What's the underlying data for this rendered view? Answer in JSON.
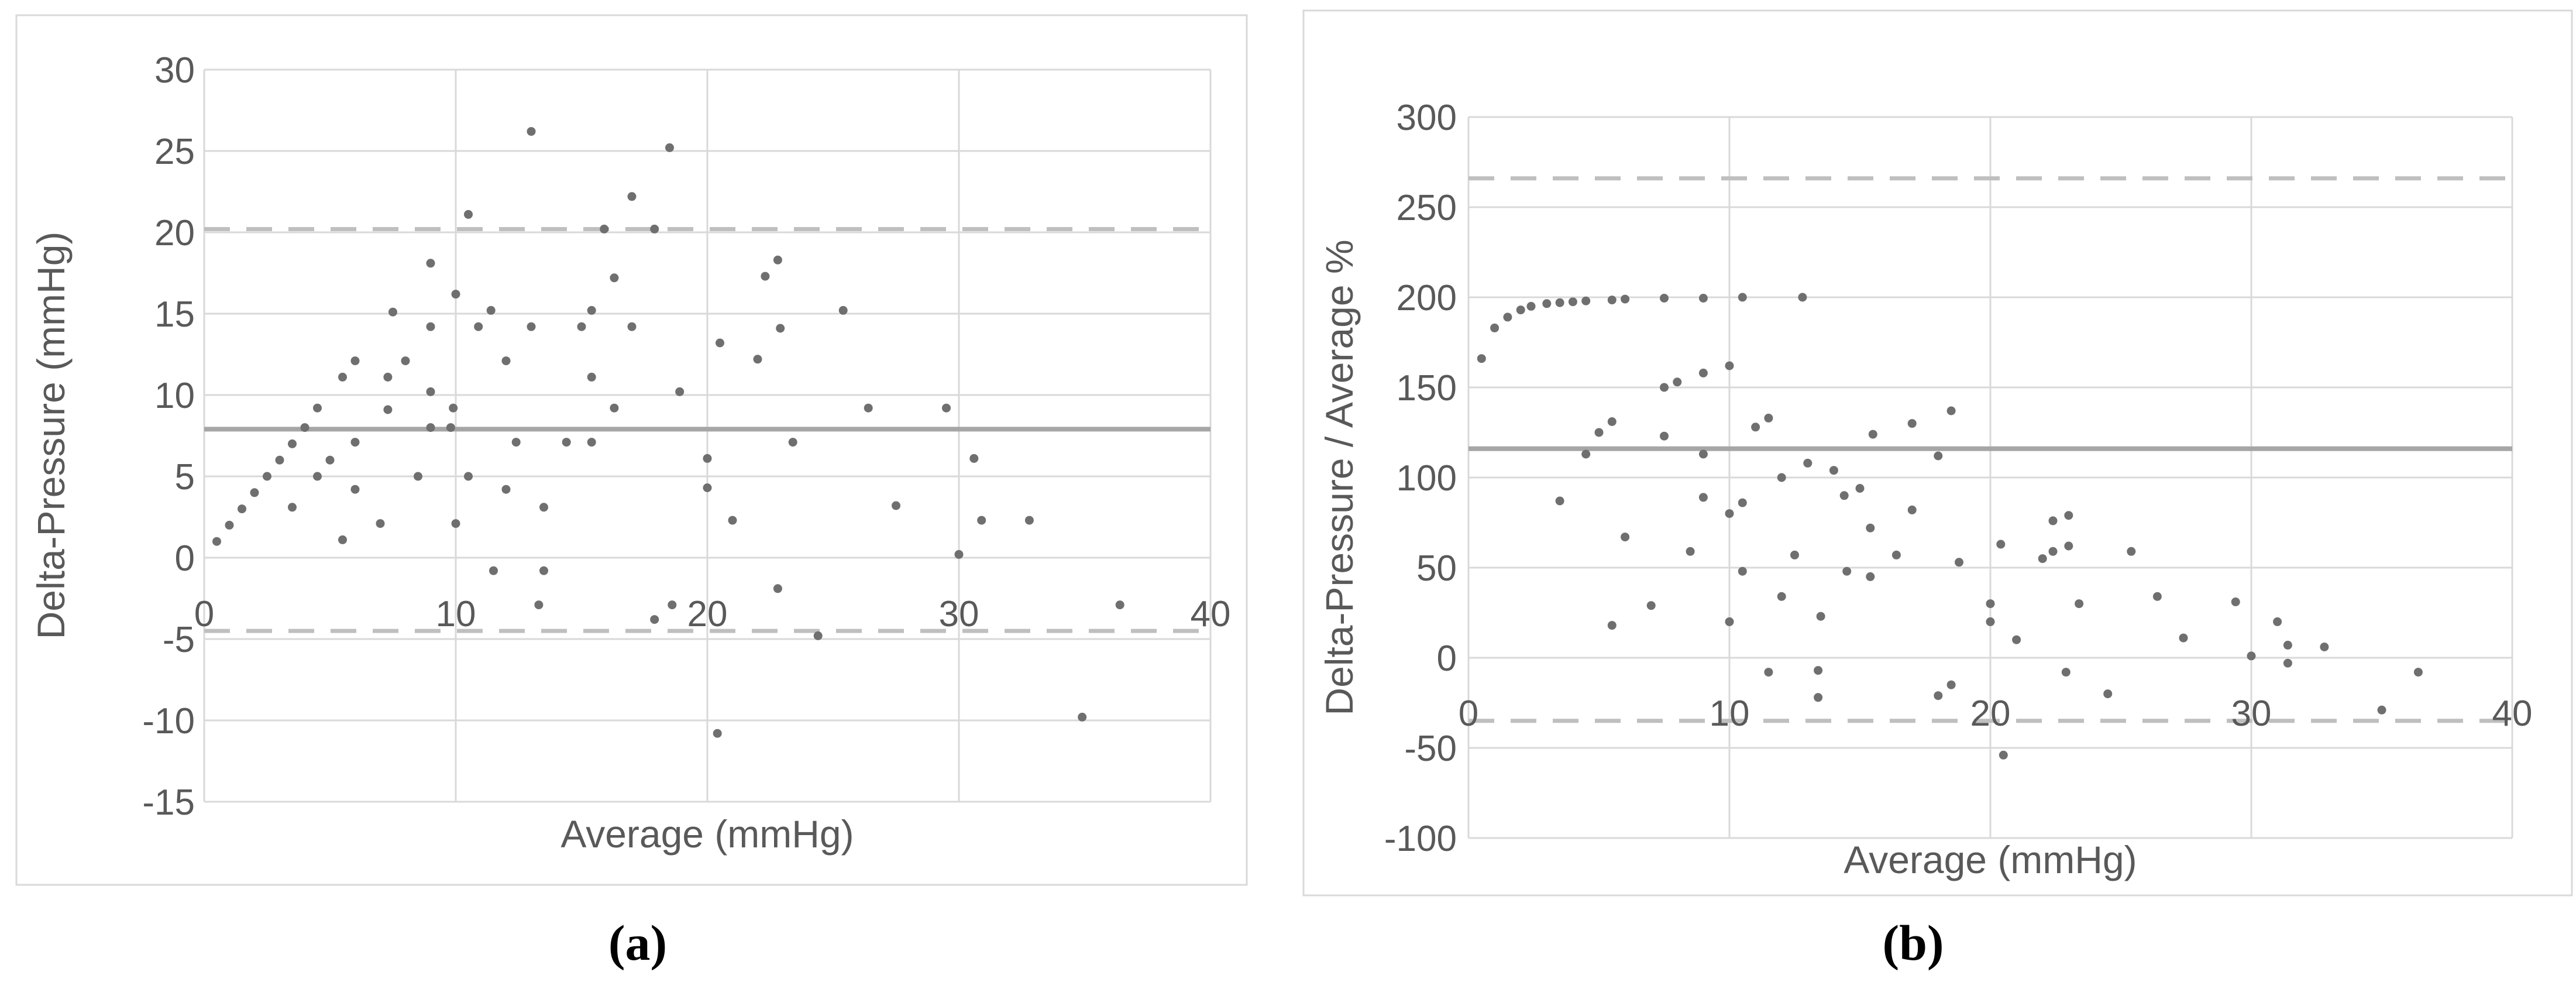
{
  "figure": {
    "captions": {
      "a": "(a)",
      "b": "(b)"
    },
    "colors": {
      "background": "#ffffff",
      "point": "#6f6f6f",
      "gridline": "#d9d9d9",
      "panel_border": "#d9d9d9",
      "mean_line": "#a6a6a6",
      "loa_dashed_line": "#bfbfbf",
      "axis_text": "#595959",
      "caption_text": "#000000"
    }
  },
  "chart_data": [
    {
      "type": "scatter",
      "panel": "a",
      "title": "",
      "xlabel": "Average (mmHg)",
      "ylabel": "Delta-Pressure (mmHg)",
      "xlim": [
        0,
        40
      ],
      "ylim": [
        -15,
        30
      ],
      "x_ticks": [
        0,
        10,
        20,
        30,
        40
      ],
      "y_ticks": [
        30,
        25,
        20,
        15,
        10,
        5,
        0,
        -5,
        -10,
        -15
      ],
      "grid": true,
      "legend": false,
      "mean_line": 7.9,
      "upper_loa": 20.2,
      "lower_loa": -4.5,
      "points": [
        [
          0.5,
          1
        ],
        [
          1,
          2
        ],
        [
          1.5,
          3
        ],
        [
          2,
          4
        ],
        [
          2.5,
          5
        ],
        [
          3,
          6
        ],
        [
          3.5,
          7
        ],
        [
          4,
          8
        ],
        [
          3.5,
          3.1
        ],
        [
          5,
          6
        ],
        [
          4.5,
          5
        ],
        [
          5.5,
          1.1
        ],
        [
          6,
          4.2
        ],
        [
          7,
          2.1
        ],
        [
          8.5,
          5
        ],
        [
          10,
          2.1
        ],
        [
          10.5,
          5
        ],
        [
          12,
          4.2
        ],
        [
          13.5,
          3.1
        ],
        [
          11.5,
          -0.8
        ],
        [
          13.5,
          -0.8
        ],
        [
          13.3,
          -2.9
        ],
        [
          4.5,
          9.2
        ],
        [
          6,
          7.1
        ],
        [
          5.5,
          11.1
        ],
        [
          6,
          12.1
        ],
        [
          7.3,
          11.1
        ],
        [
          7.3,
          9.1
        ],
        [
          8,
          12.1
        ],
        [
          9,
          10.2
        ],
        [
          9,
          8
        ],
        [
          9.8,
          8
        ],
        [
          9.9,
          9.2
        ],
        [
          12.4,
          7.1
        ],
        [
          14.4,
          7.1
        ],
        [
          15.4,
          7.1
        ],
        [
          16.3,
          9.2
        ],
        [
          20,
          6.1
        ],
        [
          20,
          4.3
        ],
        [
          21,
          2.3
        ],
        [
          23.4,
          7.1
        ],
        [
          26.4,
          9.2
        ],
        [
          29.5,
          9.2
        ],
        [
          30.6,
          6.1
        ],
        [
          27.5,
          3.2
        ],
        [
          30.9,
          2.3
        ],
        [
          32.8,
          2.3
        ],
        [
          30,
          0.2
        ],
        [
          7.5,
          15.1
        ],
        [
          9,
          14.2
        ],
        [
          9,
          18.1
        ],
        [
          10,
          16.2
        ],
        [
          10.9,
          14.2
        ],
        [
          11.4,
          15.2
        ],
        [
          13,
          14.2
        ],
        [
          15,
          14.2
        ],
        [
          17,
          14.2
        ],
        [
          15.4,
          15.2
        ],
        [
          12,
          12.1
        ],
        [
          20.5,
          13.2
        ],
        [
          22,
          12.2
        ],
        [
          22.9,
          14.1
        ],
        [
          25.4,
          15.2
        ],
        [
          22.8,
          18.3
        ],
        [
          22.3,
          17.3
        ],
        [
          16.3,
          17.2
        ],
        [
          18.9,
          10.2
        ],
        [
          15.4,
          11.1
        ],
        [
          10.5,
          21.1
        ],
        [
          13,
          26.2
        ],
        [
          15.9,
          20.2
        ],
        [
          17.9,
          20.2
        ],
        [
          17,
          22.2
        ],
        [
          18.5,
          25.2
        ],
        [
          18.6,
          -2.9
        ],
        [
          17.9,
          -3.8
        ],
        [
          22.8,
          -1.9
        ],
        [
          24.4,
          -4.8
        ],
        [
          20.4,
          -10.8
        ],
        [
          34.9,
          -9.8
        ],
        [
          36.4,
          -2.9
        ]
      ]
    },
    {
      "type": "scatter",
      "panel": "b",
      "title": "",
      "xlabel": "Average (mmHg)",
      "ylabel": "Delta-Pressure / Average %",
      "xlim": [
        0,
        40
      ],
      "ylim": [
        -100,
        300
      ],
      "x_ticks": [
        0,
        10,
        20,
        30,
        40
      ],
      "y_ticks": [
        300,
        250,
        200,
        150,
        100,
        50,
        0,
        -50,
        -100
      ],
      "grid": true,
      "legend": false,
      "mean_line": 116,
      "upper_loa": 266,
      "lower_loa": -35,
      "points": [
        [
          0.5,
          166
        ],
        [
          1,
          183
        ],
        [
          1.5,
          189
        ],
        [
          2,
          193
        ],
        [
          2.4,
          195
        ],
        [
          3,
          196.5
        ],
        [
          3.5,
          197
        ],
        [
          4,
          197.5
        ],
        [
          4.5,
          198
        ],
        [
          5.5,
          198.5
        ],
        [
          6,
          199
        ],
        [
          7.5,
          199.5
        ],
        [
          9,
          199.5
        ],
        [
          10.5,
          200
        ],
        [
          12.8,
          200
        ],
        [
          7.5,
          150
        ],
        [
          8,
          153
        ],
        [
          9,
          158
        ],
        [
          10,
          162
        ],
        [
          11,
          128
        ],
        [
          11.5,
          133
        ],
        [
          15.5,
          124
        ],
        [
          17,
          130
        ],
        [
          18.5,
          137
        ],
        [
          5,
          125
        ],
        [
          5.5,
          131
        ],
        [
          7.5,
          123
        ],
        [
          13,
          108
        ],
        [
          14,
          104
        ],
        [
          18,
          112
        ],
        [
          4.5,
          113
        ],
        [
          9,
          113
        ],
        [
          12,
          100
        ],
        [
          3.5,
          87
        ],
        [
          6,
          67
        ],
        [
          8.5,
          59
        ],
        [
          9,
          89
        ],
        [
          10,
          80
        ],
        [
          10.5,
          86
        ],
        [
          10.5,
          48
        ],
        [
          12.5,
          57
        ],
        [
          14.4,
          90
        ],
        [
          15,
          94
        ],
        [
          14.5,
          48
        ],
        [
          15.4,
          72
        ],
        [
          15.4,
          45
        ],
        [
          16.4,
          57
        ],
        [
          17,
          82
        ],
        [
          18.8,
          53
        ],
        [
          20.4,
          63
        ],
        [
          22,
          55
        ],
        [
          22.4,
          59
        ],
        [
          22.4,
          76
        ],
        [
          23,
          62
        ],
        [
          23,
          79
        ],
        [
          25.4,
          59
        ],
        [
          5.5,
          18
        ],
        [
          7,
          29
        ],
        [
          10,
          20
        ],
        [
          12,
          34
        ],
        [
          13.5,
          23
        ],
        [
          20,
          30
        ],
        [
          20,
          20
        ],
        [
          21,
          10
        ],
        [
          23.4,
          30
        ],
        [
          26.4,
          34
        ],
        [
          27.4,
          11
        ],
        [
          29.4,
          31
        ],
        [
          30,
          1
        ],
        [
          31,
          20
        ],
        [
          31.4,
          7
        ],
        [
          32.8,
          6
        ],
        [
          11.5,
          -8
        ],
        [
          13.4,
          -7
        ],
        [
          13.4,
          -22
        ],
        [
          18,
          -21
        ],
        [
          18.5,
          -15
        ],
        [
          20.5,
          -54
        ],
        [
          22.9,
          -8
        ],
        [
          24.5,
          -20
        ],
        [
          31.4,
          -3
        ],
        [
          35,
          -29
        ],
        [
          36.4,
          -8
        ]
      ]
    }
  ]
}
